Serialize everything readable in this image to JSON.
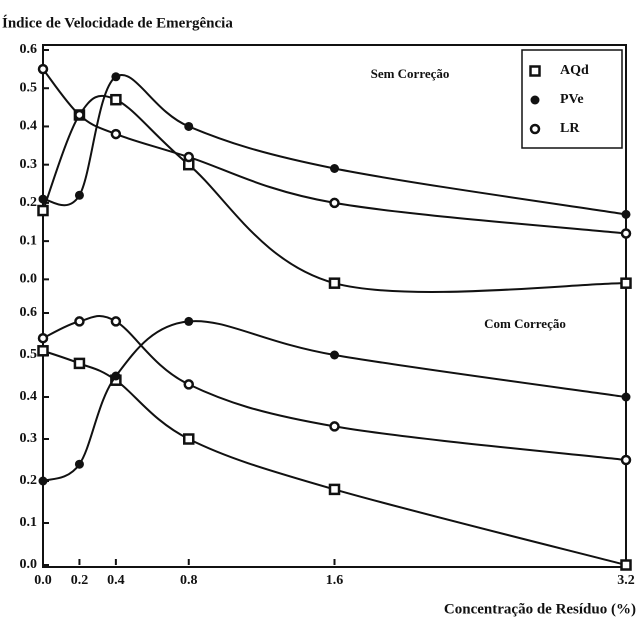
{
  "chart_data": [
    {
      "type": "line",
      "title": "Índice de Velocidade de Emergência",
      "annotation": "Sem Correção",
      "x": [
        0,
        0.2,
        0.4,
        0.8,
        1.6,
        3.2
      ],
      "series": [
        {
          "name": "AQd",
          "marker": "square",
          "color": "#111",
          "values": [
            0.18,
            0.43,
            0.47,
            0.3,
            -0.01,
            -0.01
          ]
        },
        {
          "name": "PVe",
          "marker": "circle",
          "color": "#111",
          "values": [
            0.21,
            0.22,
            0.53,
            0.4,
            0.29,
            0.17
          ]
        },
        {
          "name": "LR",
          "marker": "open-circle",
          "color": "#111",
          "values": [
            0.55,
            0.43,
            0.38,
            0.32,
            0.2,
            0.12
          ]
        }
      ],
      "xlim": [
        0,
        3.2
      ],
      "ylim": [
        -0.02,
        0.6
      ],
      "yticks": [
        {
          "value": 0,
          "label": "0.0"
        },
        0.1,
        0.2,
        0.3,
        0.4,
        0.5,
        0.6
      ],
      "legend": "upper right"
    },
    {
      "type": "line",
      "annotation": "Com Correção",
      "xlabel": "Concentração de Resíduo (%)",
      "x": [
        0,
        0.2,
        0.4,
        0.8,
        1.6,
        3.2
      ],
      "series": [
        {
          "marker": "square",
          "color": "#111",
          "values": [
            0.51,
            0.48,
            0.44,
            0.3,
            0.18,
            0.0
          ]
        },
        {
          "marker": "circle",
          "color": "#111",
          "values": [
            0.2,
            0.24,
            0.45,
            0.58,
            0.5,
            0.4
          ]
        },
        {
          "marker": "open-circle",
          "color": "#111",
          "values": [
            0.54,
            0.58,
            0.58,
            0.43,
            0.33,
            0.25
          ]
        }
      ],
      "xlim": [
        0,
        3.2
      ],
      "ylim": [
        0,
        0.65
      ],
      "xticks": [
        {
          "value": 0,
          "label": "0.0"
        },
        0.2,
        0.4,
        0.8,
        1.6,
        3.2
      ],
      "yticks": [
        {
          "value": 0,
          "label": "0.0"
        },
        0.1,
        0.2,
        0.3,
        0.4,
        0.5,
        0.6
      ]
    }
  ]
}
